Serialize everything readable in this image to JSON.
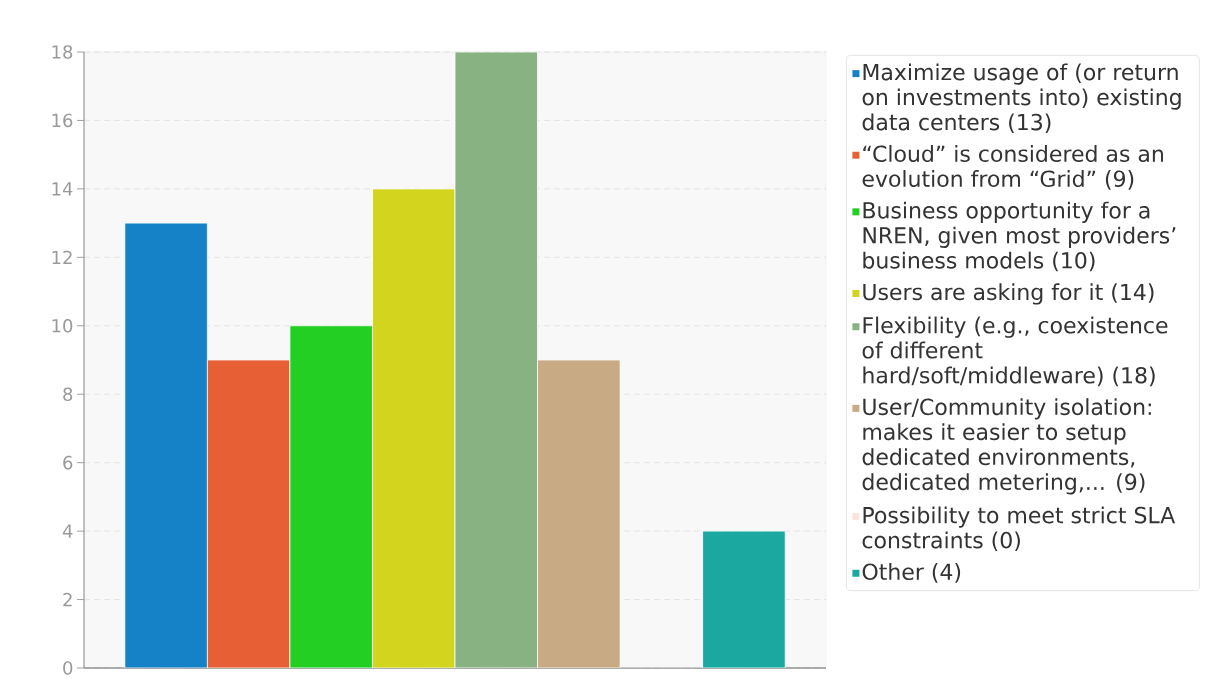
{
  "chart_data": {
    "type": "bar",
    "categories": [
      null
    ],
    "series": [
      {
        "name": "Maximize usage of (or return on investments into) existing data centers (13)",
        "color": "#1582c8",
        "values": [
          13
        ]
      },
      {
        "name": "“Cloud” is considered as an evolution from “Grid” (9)",
        "color": "#e65f35",
        "values": [
          9
        ]
      },
      {
        "name": "Business opportunity for a NREN, given most providers’ business models (10)",
        "color": "#22cf22",
        "values": [
          10
        ]
      },
      {
        "name": "Users are asking for it (14)",
        "color": "#d2d41e",
        "values": [
          14
        ]
      },
      {
        "name": "Flexibility (e.g., coexistence of different hard/soft/middleware) (18)",
        "color": "#88b282",
        "values": [
          18
        ]
      },
      {
        "name": "User/Community isolation: makes it easier to setup dedicated environments, dedicated metering,... (9)",
        "color": "#c8aa84",
        "values": [
          9
        ]
      },
      {
        "name": "Possibility to meet strict SLA constraints (0)",
        "color": "#fbe2da",
        "values": [
          0
        ]
      },
      {
        "name": "Other (4)",
        "color": "#1aa8a0",
        "values": [
          4
        ]
      }
    ],
    "ylim": [
      0,
      18
    ],
    "yticks": [
      0,
      2,
      4,
      6,
      8,
      10,
      12,
      14,
      16,
      18
    ],
    "grid": "y",
    "legend": "right",
    "tick_labels": "y"
  }
}
